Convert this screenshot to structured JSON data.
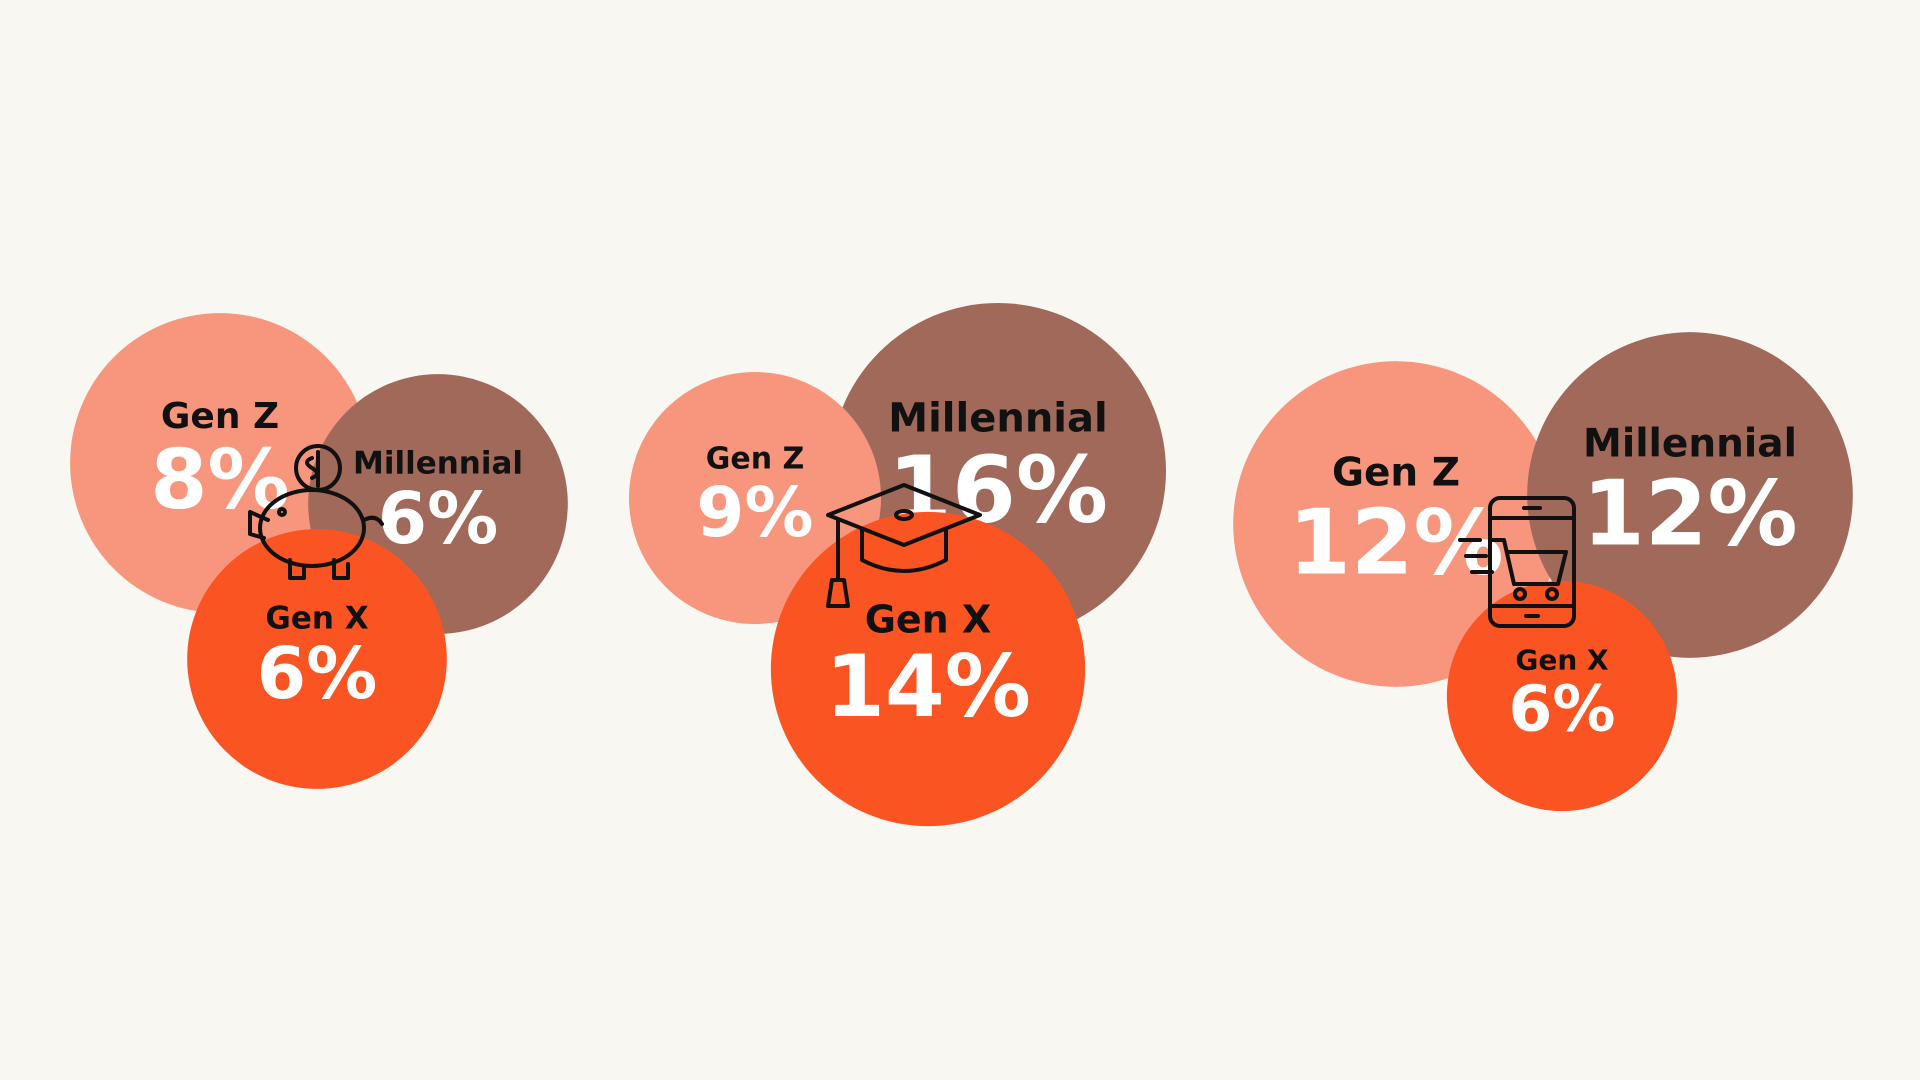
{
  "chart_data": [
    {
      "type": "bubble",
      "categories": [
        "Gen Z",
        "Millennial",
        "Gen X"
      ],
      "values": [
        8,
        6,
        6
      ],
      "value_labels": [
        "8%",
        "6%",
        "6%"
      ],
      "colors": [
        "#f7967c",
        "#a0695a",
        "#fa5423"
      ]
    },
    {
      "type": "bubble",
      "categories": [
        "Gen Z",
        "Millennial",
        "Gen X"
      ],
      "values": [
        9,
        16,
        14
      ],
      "value_labels": [
        "9%",
        "16%",
        "14%"
      ],
      "colors": [
        "#f7967c",
        "#a0695a",
        "#fa5423"
      ]
    },
    {
      "type": "bubble",
      "categories": [
        "Gen Z",
        "Millennial",
        "Gen X"
      ],
      "values": [
        12,
        12,
        6
      ],
      "value_labels": [
        "12%",
        "12%",
        "6%"
      ],
      "colors": [
        "#f7967c",
        "#a0695a",
        "#fa5423"
      ]
    }
  ]
}
